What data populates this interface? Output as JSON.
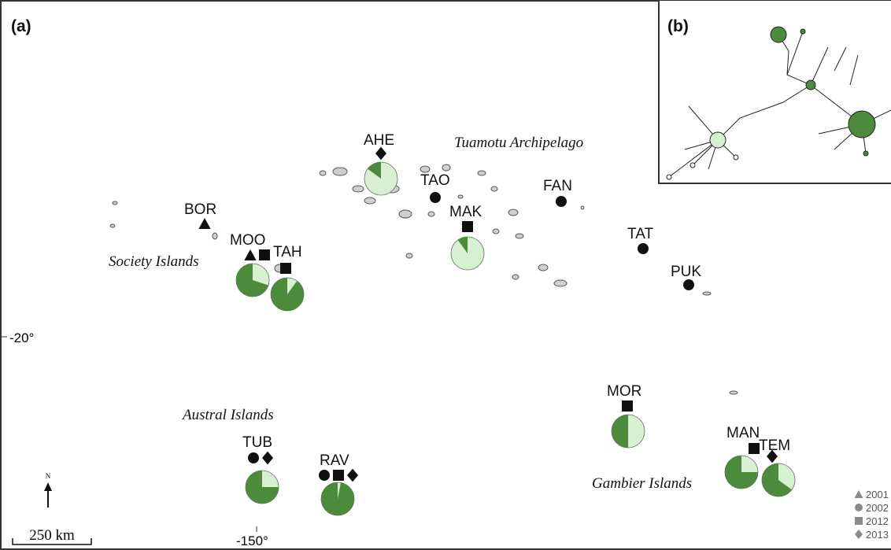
{
  "panels": {
    "a": "(a)",
    "b": "(b)"
  },
  "regions": [
    "Tuamotu Archipelago",
    "Society Islands",
    "Austral Islands",
    "Gambier Islands"
  ],
  "sites": [
    {
      "label": "AHE",
      "symbols": [
        "diamond"
      ],
      "dark_percent": 15
    },
    {
      "label": "TAO",
      "symbols": [
        "circle"
      ]
    },
    {
      "label": "MAK",
      "symbols": [
        "square"
      ],
      "dark_percent": 10
    },
    {
      "label": "FAN",
      "symbols": [
        "circle"
      ]
    },
    {
      "label": "BOR",
      "symbols": [
        "triangle"
      ]
    },
    {
      "label": "MOO",
      "symbols": [
        "triangle",
        "square"
      ],
      "dark_percent": 70
    },
    {
      "label": "TAH",
      "symbols": [
        "square"
      ],
      "dark_percent": 90
    },
    {
      "label": "TAT",
      "symbols": [
        "circle"
      ]
    },
    {
      "label": "PUK",
      "symbols": [
        "circle"
      ]
    },
    {
      "label": "MOR",
      "symbols": [
        "square"
      ],
      "dark_percent": 50
    },
    {
      "label": "TUB",
      "symbols": [
        "circle",
        "diamond"
      ],
      "dark_percent": 75
    },
    {
      "label": "RAV",
      "symbols": [
        "circle",
        "square",
        "diamond"
      ],
      "dark_percent": 97
    },
    {
      "label": "MAN",
      "symbols": [
        "square"
      ],
      "dark_percent": 75
    },
    {
      "label": "TEM",
      "symbols": [
        "diamond"
      ],
      "dark_percent": 65
    }
  ],
  "pie_colors": {
    "dark": "#4d8b3c",
    "light": "#d8f0d2"
  },
  "scale_bar": "250 km",
  "north": "N",
  "axis_labels": [
    "-20°",
    "-150°"
  ],
  "legend": [
    {
      "symbol": "triangle",
      "label": "2001"
    },
    {
      "symbol": "circle",
      "label": "2002"
    },
    {
      "symbol": "square",
      "label": "2012"
    },
    {
      "symbol": "diamond",
      "label": "2013"
    }
  ]
}
